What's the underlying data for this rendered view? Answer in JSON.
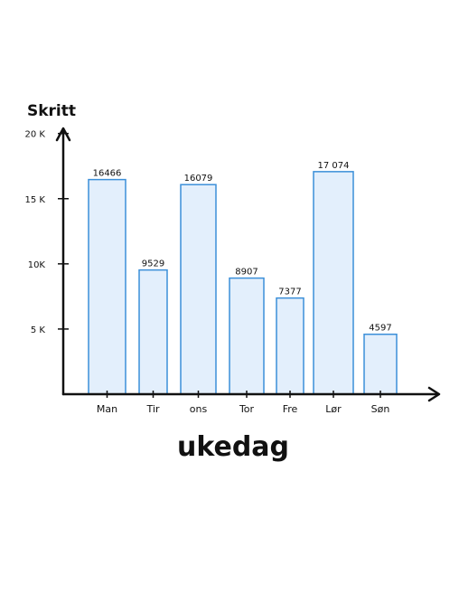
{
  "chart_data": {
    "type": "bar",
    "title": "",
    "xlabel": "ukedag",
    "ylabel": "Skritt",
    "categories": [
      "Man",
      "Tir",
      "ons",
      "Tor",
      "Fre",
      "Lør",
      "Søn"
    ],
    "values": [
      16466,
      9529,
      16079,
      8907,
      7377,
      17074,
      4597
    ],
    "data_labels": [
      "16466",
      "9529",
      "16079",
      "8907",
      "7377",
      "17 074",
      "4597"
    ],
    "y_ticks": [
      5000,
      10000,
      15000,
      20000
    ],
    "y_tick_labels": [
      "5 K",
      "10K",
      "15 K",
      "20 K"
    ],
    "ylim": [
      0,
      24000
    ],
    "grid": false,
    "bar_fill": "#e3effc",
    "bar_stroke": "#3b8fd9",
    "axis_color": "#111111"
  }
}
